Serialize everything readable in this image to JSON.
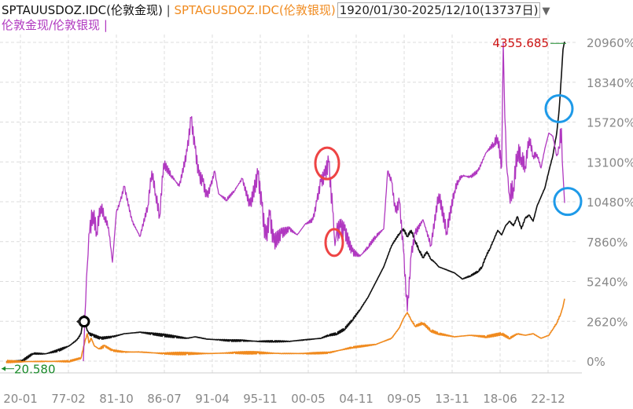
{
  "header": {
    "gold_name": "SPTAUUSDOZ.IDC(伦敦金现)",
    "separator": " | ",
    "silver_name": "SPTAGUSDOZ.IDC(伦敦银现)",
    "date_range": "1920/01/30-2025/12/10(13737日)",
    "dropdown_glyph": "▼",
    "ratio_name": "伦敦金现/伦敦银现",
    "ratio_cursor": " |"
  },
  "colors": {
    "gold": "#111111",
    "silver": "#f08a1e",
    "ratio": "#b038c0",
    "max_label": "#cc1111",
    "min_label": "#1a8a2a",
    "grid": "#dcdcdc",
    "axis_text": "#888888",
    "red_marker": "#ee4444",
    "blue_marker": "#1e9ae8"
  },
  "chart_data": {
    "type": "line",
    "x_tick_labels": [
      "20-01",
      "77-02",
      "81-10",
      "86-07",
      "91-04",
      "95-11",
      "00-05",
      "04-11",
      "09-05",
      "13-11",
      "18-06",
      "22-12"
    ],
    "y_tick_labels": [
      "20960%",
      "18340%",
      "15720%",
      "13100%",
      "10480%",
      "7860%",
      "5240%",
      "2620%",
      "0%"
    ],
    "ylim": [
      0,
      20960
    ],
    "max_label": "4355.685",
    "min_label": "20.580",
    "grid": true,
    "series": [
      {
        "name": "SPTAUUSDOZ.IDC(伦敦金现)",
        "style": "line",
        "x": [
          0,
          6,
          10,
          20,
          34,
          50,
          66,
          80,
          90,
          95,
          97,
          99,
          100,
          101,
          102,
          103,
          105,
          110,
          120,
          135,
          150,
          170,
          185,
          200,
          215,
          230,
          240,
          255,
          270,
          285,
          300,
          320,
          340,
          360,
          380,
          400,
          410,
          420,
          430,
          440,
          450,
          460,
          470,
          480,
          490,
          500,
          505,
          510,
          515,
          520,
          525,
          530,
          535,
          540,
          545,
          550,
          560,
          570,
          580,
          590,
          600,
          605,
          610,
          615,
          620,
          625,
          630,
          635,
          640,
          645,
          650,
          655,
          660,
          665,
          670,
          675,
          680,
          685,
          690,
          695,
          700,
          703,
          706,
          708,
          710
        ],
        "y": [
          -30,
          -20,
          -15,
          0,
          500,
          480,
          700,
          1000,
          1400,
          1800,
          2600,
          3000,
          2300,
          2500,
          2200,
          2000,
          1800,
          1700,
          1500,
          1600,
          1800,
          1900,
          1800,
          1700,
          1600,
          1500,
          1600,
          1450,
          1400,
          1350,
          1350,
          1300,
          1300,
          1300,
          1400,
          1500,
          1700,
          1800,
          2100,
          2700,
          3400,
          4200,
          5200,
          6200,
          7600,
          8400,
          8700,
          8200,
          8600,
          7900,
          7300,
          6800,
          7200,
          6700,
          6500,
          6200,
          6000,
          5800,
          5400,
          5600,
          5900,
          6200,
          6900,
          7400,
          8000,
          8600,
          8300,
          8900,
          9200,
          8900,
          9500,
          8700,
          9400,
          9600,
          9200,
          10200,
          10800,
          11400,
          12500,
          13500,
          15000,
          16500,
          18800,
          20500,
          21000
        ]
      },
      {
        "name": "SPTAGUSDOZ.IDC(伦敦银现)",
        "style": "line",
        "x": [
          0,
          20,
          50,
          80,
          95,
          100,
          103,
          105,
          108,
          112,
          118,
          125,
          135,
          150,
          170,
          185,
          200,
          230,
          260,
          290,
          320,
          350,
          380,
          410,
          440,
          470,
          490,
          500,
          505,
          510,
          515,
          520,
          530,
          540,
          550,
          570,
          590,
          610,
          630,
          640,
          650,
          660,
          670,
          680,
          690,
          695,
          700,
          705,
          708,
          710
        ],
        "y": [
          -30,
          -30,
          -20,
          -10,
          200,
          1300,
          1800,
          1200,
          1500,
          1000,
          800,
          1000,
          700,
          600,
          600,
          550,
          500,
          500,
          500,
          550,
          550,
          500,
          500,
          550,
          900,
          1100,
          1500,
          2200,
          2800,
          3200,
          2700,
          2300,
          2500,
          2000,
          1800,
          1600,
          1700,
          1600,
          1800,
          1500,
          1800,
          1700,
          1800,
          1500,
          1700,
          2100,
          2500,
          3100,
          3600,
          4100
        ]
      },
      {
        "name": "伦敦金现/伦敦银现",
        "style": "jagged",
        "x": [
          98,
          100,
          102,
          104,
          106,
          110,
          115,
          120,
          125,
          130,
          135,
          140,
          145,
          150,
          160,
          170,
          180,
          185,
          190,
          195,
          200,
          210,
          220,
          230,
          235,
          240,
          245,
          250,
          255,
          260,
          265,
          270,
          280,
          290,
          300,
          310,
          320,
          325,
          330,
          335,
          340,
          350,
          360,
          370,
          380,
          390,
          395,
          400,
          405,
          410,
          415,
          418,
          420,
          425,
          430,
          440,
          450,
          460,
          470,
          480,
          485,
          490,
          495,
          500,
          505,
          510,
          515,
          520,
          530,
          540,
          550,
          560,
          570,
          575,
          580,
          590,
          600,
          610,
          620,
          625,
          630,
          632,
          634,
          636,
          638,
          640,
          645,
          650,
          655,
          660,
          665,
          670,
          675,
          680,
          685,
          690,
          695,
          700,
          703,
          706,
          708,
          710
        ],
        "y": [
          0,
          3000,
          5500,
          7000,
          8500,
          9800,
          8500,
          10200,
          9500,
          8800,
          6500,
          9800,
          10500,
          11500,
          9200,
          8200,
          10200,
          12500,
          11000,
          9500,
          13000,
          12200,
          11500,
          13800,
          16000,
          14000,
          12200,
          11800,
          10800,
          11500,
          12500,
          11000,
          10600,
          11200,
          12000,
          10200,
          12300,
          10200,
          8000,
          9600,
          7800,
          8400,
          8700,
          8300,
          9000,
          9300,
          10500,
          11800,
          12200,
          13100,
          9900,
          7600,
          8400,
          8800,
          8600,
          7200,
          6900,
          7500,
          8200,
          8700,
          12500,
          11800,
          9800,
          10500,
          7300,
          3300,
          7000,
          8400,
          9300,
          7600,
          11000,
          8500,
          11200,
          11900,
          12200,
          12100,
          12500,
          13700,
          14300,
          14700,
          12800,
          20900,
          16000,
          13100,
          12100,
          10900,
          11400,
          13800,
          13400,
          12800,
          14700,
          13500,
          13600,
          12700,
          14000,
          15000,
          14800,
          13500,
          14000,
          15300,
          12300,
          10400
        ]
      }
    ],
    "annotations": [
      {
        "shape": "ellipse",
        "color": "red",
        "x": 408,
        "y": 13000
      },
      {
        "shape": "ellipse",
        "color": "red",
        "x": 417,
        "y": 7800
      },
      {
        "shape": "ellipse",
        "color": "blue",
        "x": 703,
        "y": 16600
      },
      {
        "shape": "ellipse",
        "color": "blue",
        "x": 714,
        "y": 10500
      },
      {
        "shape": "ring-marker",
        "color": "black",
        "x": 99,
        "y": 2600
      }
    ]
  }
}
